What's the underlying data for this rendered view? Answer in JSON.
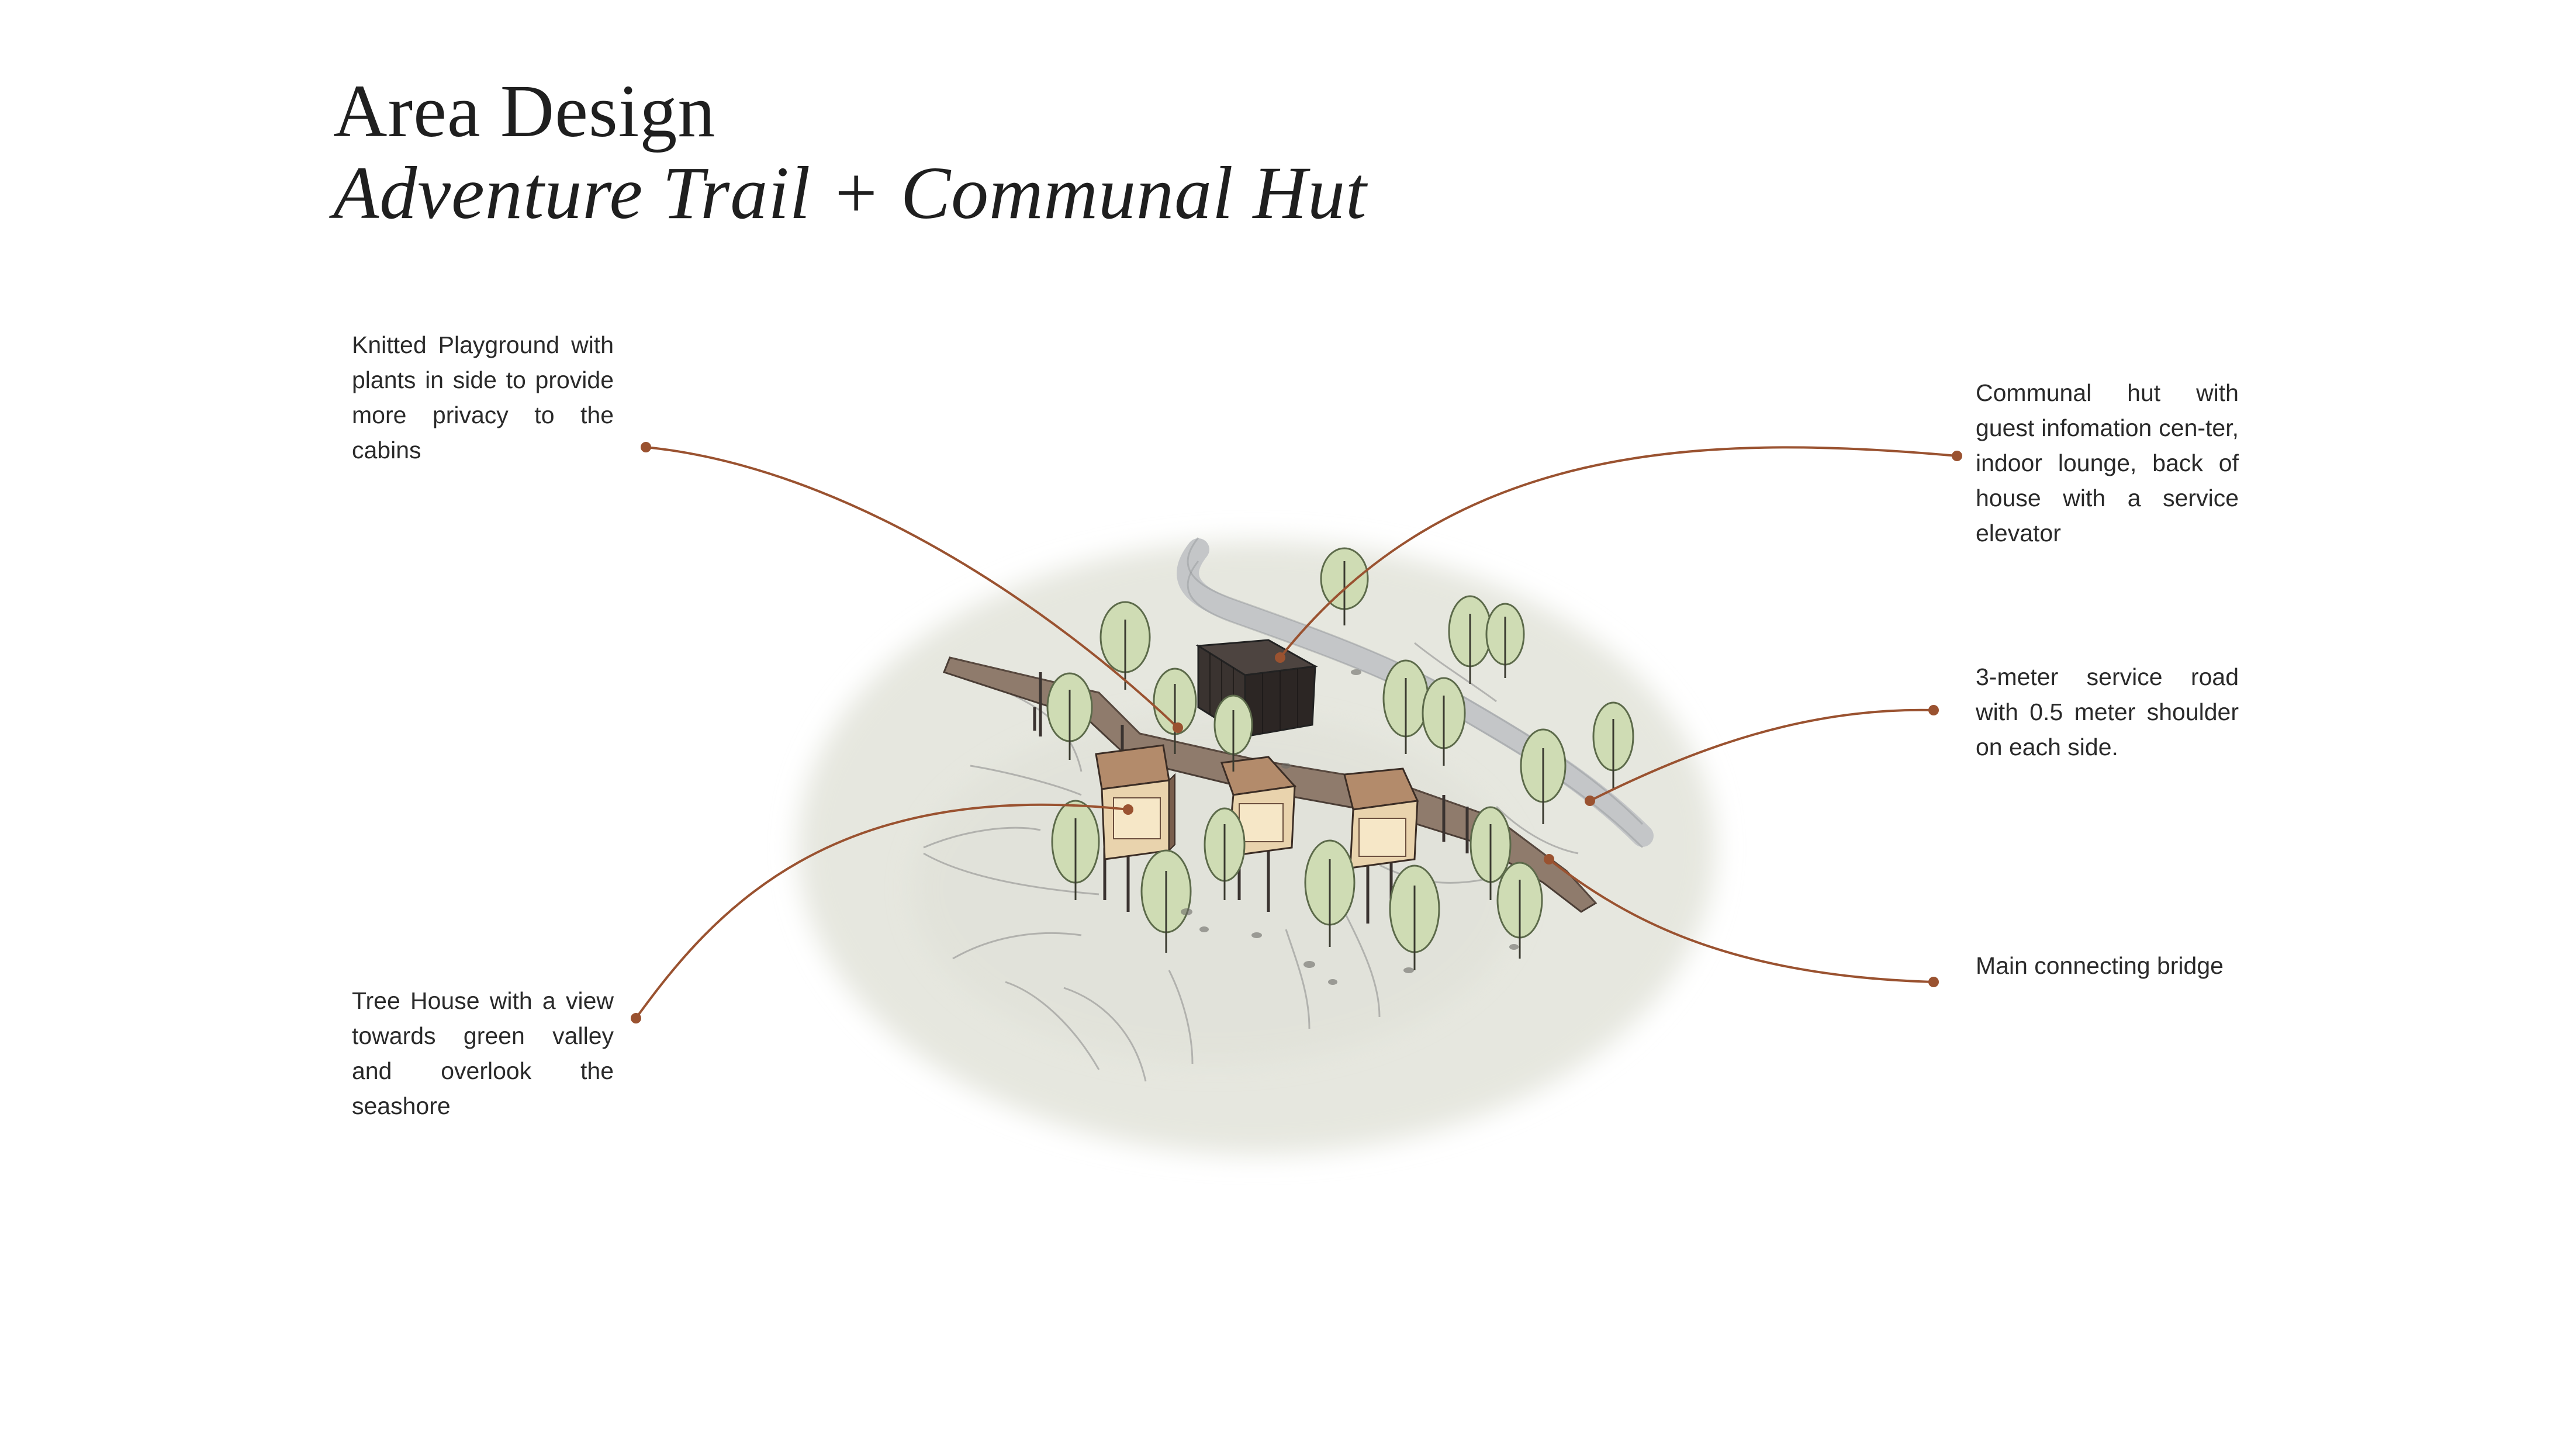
{
  "header": {
    "title": "Area Design",
    "subtitle": "Adventure Trail + Communal Hut"
  },
  "annotations": [
    {
      "id": "knitted-playground",
      "text": "Knitted Playground with plants in side to provide more privacy to the cabins"
    },
    {
      "id": "communal-hut",
      "text": "Communal hut with guest infomation cen-ter, indoor lounge, back of house with a service elevator"
    },
    {
      "id": "service-road",
      "text": "3-meter service road with 0.5 meter shoulder on each side."
    },
    {
      "id": "connecting-bridge",
      "text": "Main connecting bridge"
    },
    {
      "id": "tree-house",
      "text": "Tree House with a view towards green valley and overlook the seashore"
    }
  ],
  "colors": {
    "leader": "#9a5230",
    "ground": "#e6e7df",
    "tree": "#cfdcb4",
    "cabin": "#c9a98a",
    "hut": "#3a3330",
    "bridge": "#8f7b6c",
    "road": "#c4c6c8"
  }
}
